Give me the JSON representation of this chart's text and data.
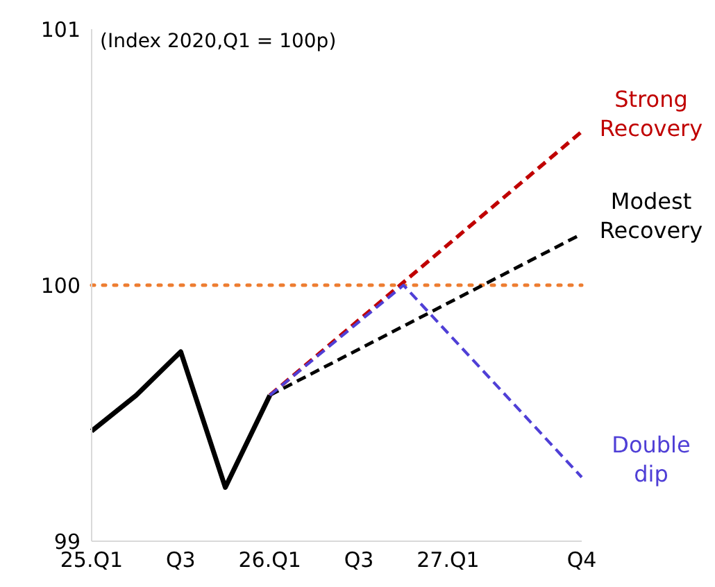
{
  "chart_data": {
    "type": "line",
    "annotations": [
      "(Index 2020,Q1 = 100p)"
    ],
    "categories": [
      "25.Q1",
      null,
      "Q3",
      null,
      "26.Q1",
      null,
      "Q3",
      null,
      "27.Q1",
      null,
      null,
      "Q4"
    ],
    "series": [
      {
        "color": "#000000",
        "values": [
          99.43,
          99.57,
          99.74,
          99.21,
          99.57,
          null,
          null,
          null,
          null,
          null,
          null,
          null
        ]
      },
      {
        "name": "Strong Recovery",
        "color": "#c00000",
        "line_style": "dashed",
        "values": [
          null,
          null,
          null,
          null,
          99.57,
          null,
          null,
          null,
          null,
          null,
          null,
          100.6
        ]
      },
      {
        "name": "Modest Recovery",
        "color": "#000000",
        "line_style": "dashed",
        "values": [
          null,
          null,
          null,
          null,
          99.57,
          null,
          null,
          null,
          null,
          null,
          null,
          100.2
        ]
      },
      {
        "name": "Double dip",
        "color": "#4f3fd6",
        "line_style": "dashed",
        "values": [
          null,
          null,
          null,
          null,
          99.57,
          null,
          null,
          100.0,
          null,
          null,
          null,
          99.25
        ]
      }
    ],
    "ylim": [
      99,
      101
    ],
    "yticks": [
      99,
      100,
      101
    ],
    "ref_lines": [
      {
        "axis": "y",
        "value": 100,
        "color": "#ed7d31",
        "line_style": "dotted"
      }
    ]
  }
}
